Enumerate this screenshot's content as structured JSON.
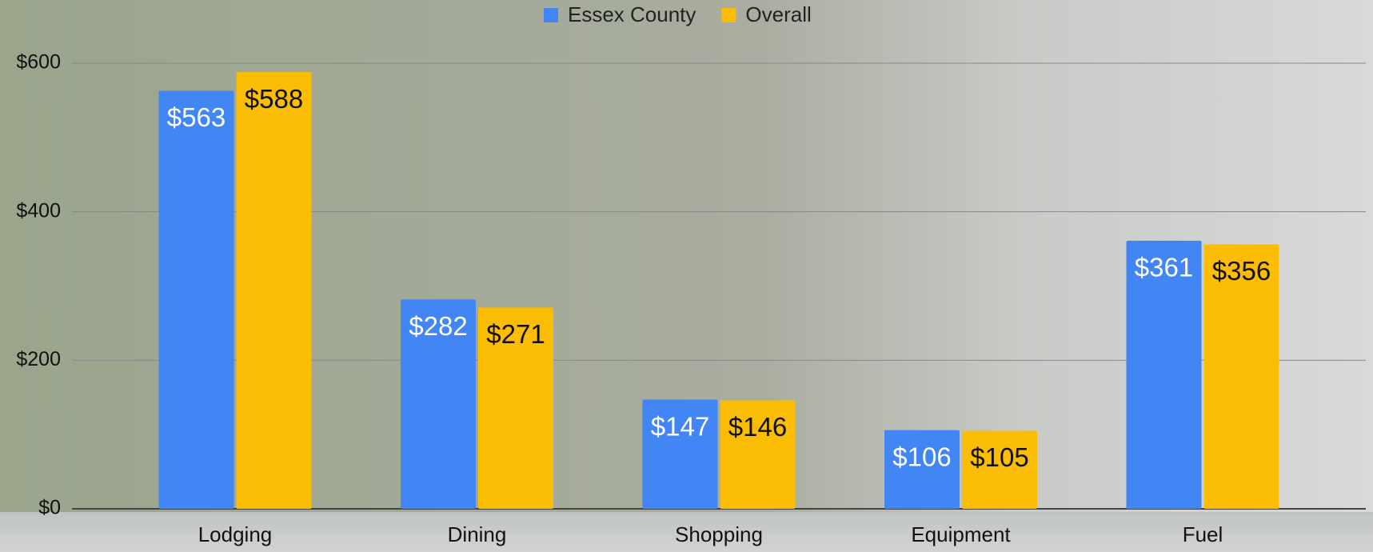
{
  "chart_data": {
    "type": "bar",
    "categories": [
      "Lodging",
      "Dining",
      "Shopping",
      "Equipment",
      "Fuel"
    ],
    "series": [
      {
        "name": "Essex County",
        "color": "#4285f4",
        "values": [
          563,
          282,
          147,
          106,
          361
        ],
        "value_labels": [
          "$563",
          "$282",
          "$147",
          "$106",
          "$361"
        ]
      },
      {
        "name": "Overall",
        "color": "#fbbc04",
        "values": [
          588,
          271,
          146,
          105,
          356
        ],
        "value_labels": [
          "$588",
          "$271",
          "$146",
          "$105",
          "$356"
        ]
      }
    ],
    "ylim": [
      0,
      600
    ],
    "yticks": [
      {
        "value": 0,
        "label": "$0"
      },
      {
        "value": 200,
        "label": "$200"
      },
      {
        "value": 400,
        "label": "$400"
      },
      {
        "value": 600,
        "label": "$600"
      }
    ],
    "grid": true,
    "legend": "top"
  }
}
